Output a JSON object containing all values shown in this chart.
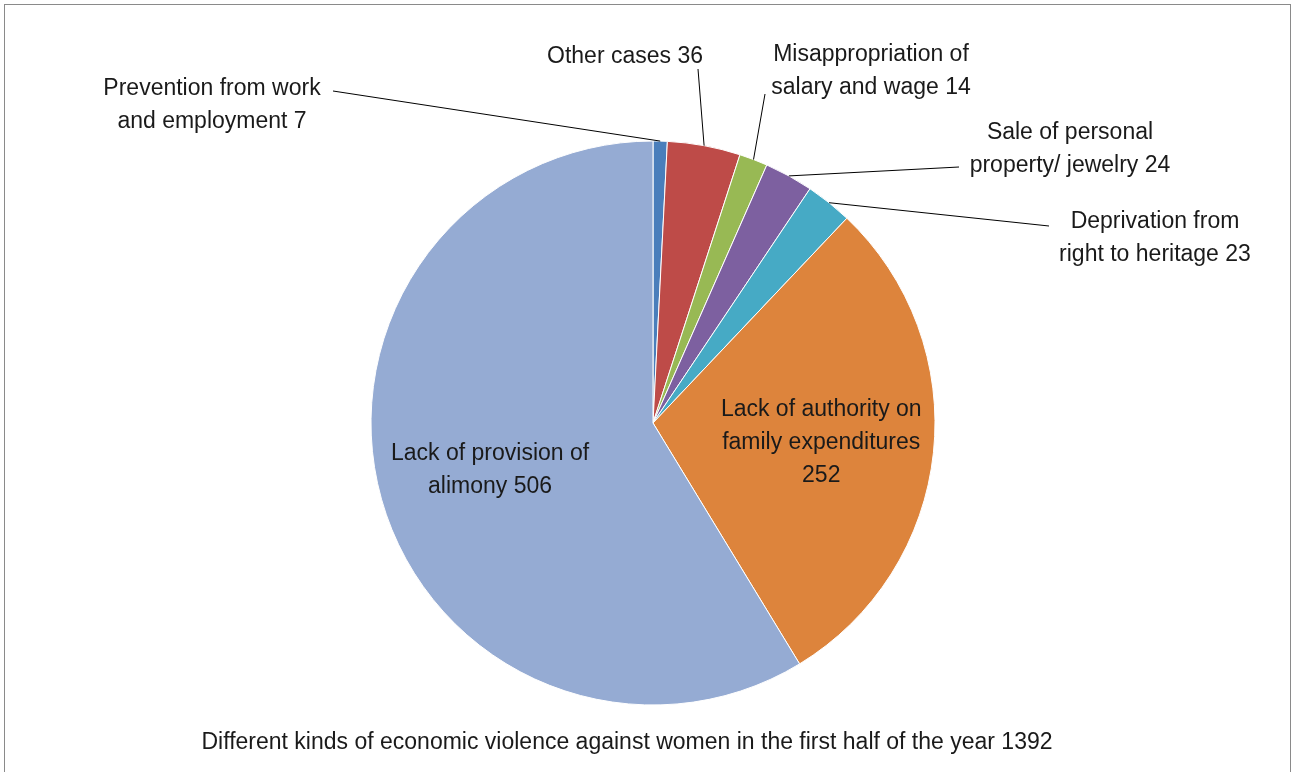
{
  "chart_data": {
    "type": "pie",
    "title": "Different kinds of economic violence against women in the first half of the year 1392",
    "categories": [
      "Prevention from work and employment 7",
      "Other cases 36",
      "Misappropriation of salary and wage 14",
      "Sale of personal property/ jewelry 24",
      "Deprivation from right to heritage 23",
      "Lack of authority on family expenditures 252",
      "Lack of provision of alimony 506"
    ],
    "values": [
      7,
      36,
      14,
      24,
      23,
      252,
      506
    ],
    "colors": [
      "#4a7ebb",
      "#be4b48",
      "#98b954",
      "#7d60a0",
      "#46aac5",
      "#dd843c",
      "#95abd3"
    ],
    "legend": false
  }
}
